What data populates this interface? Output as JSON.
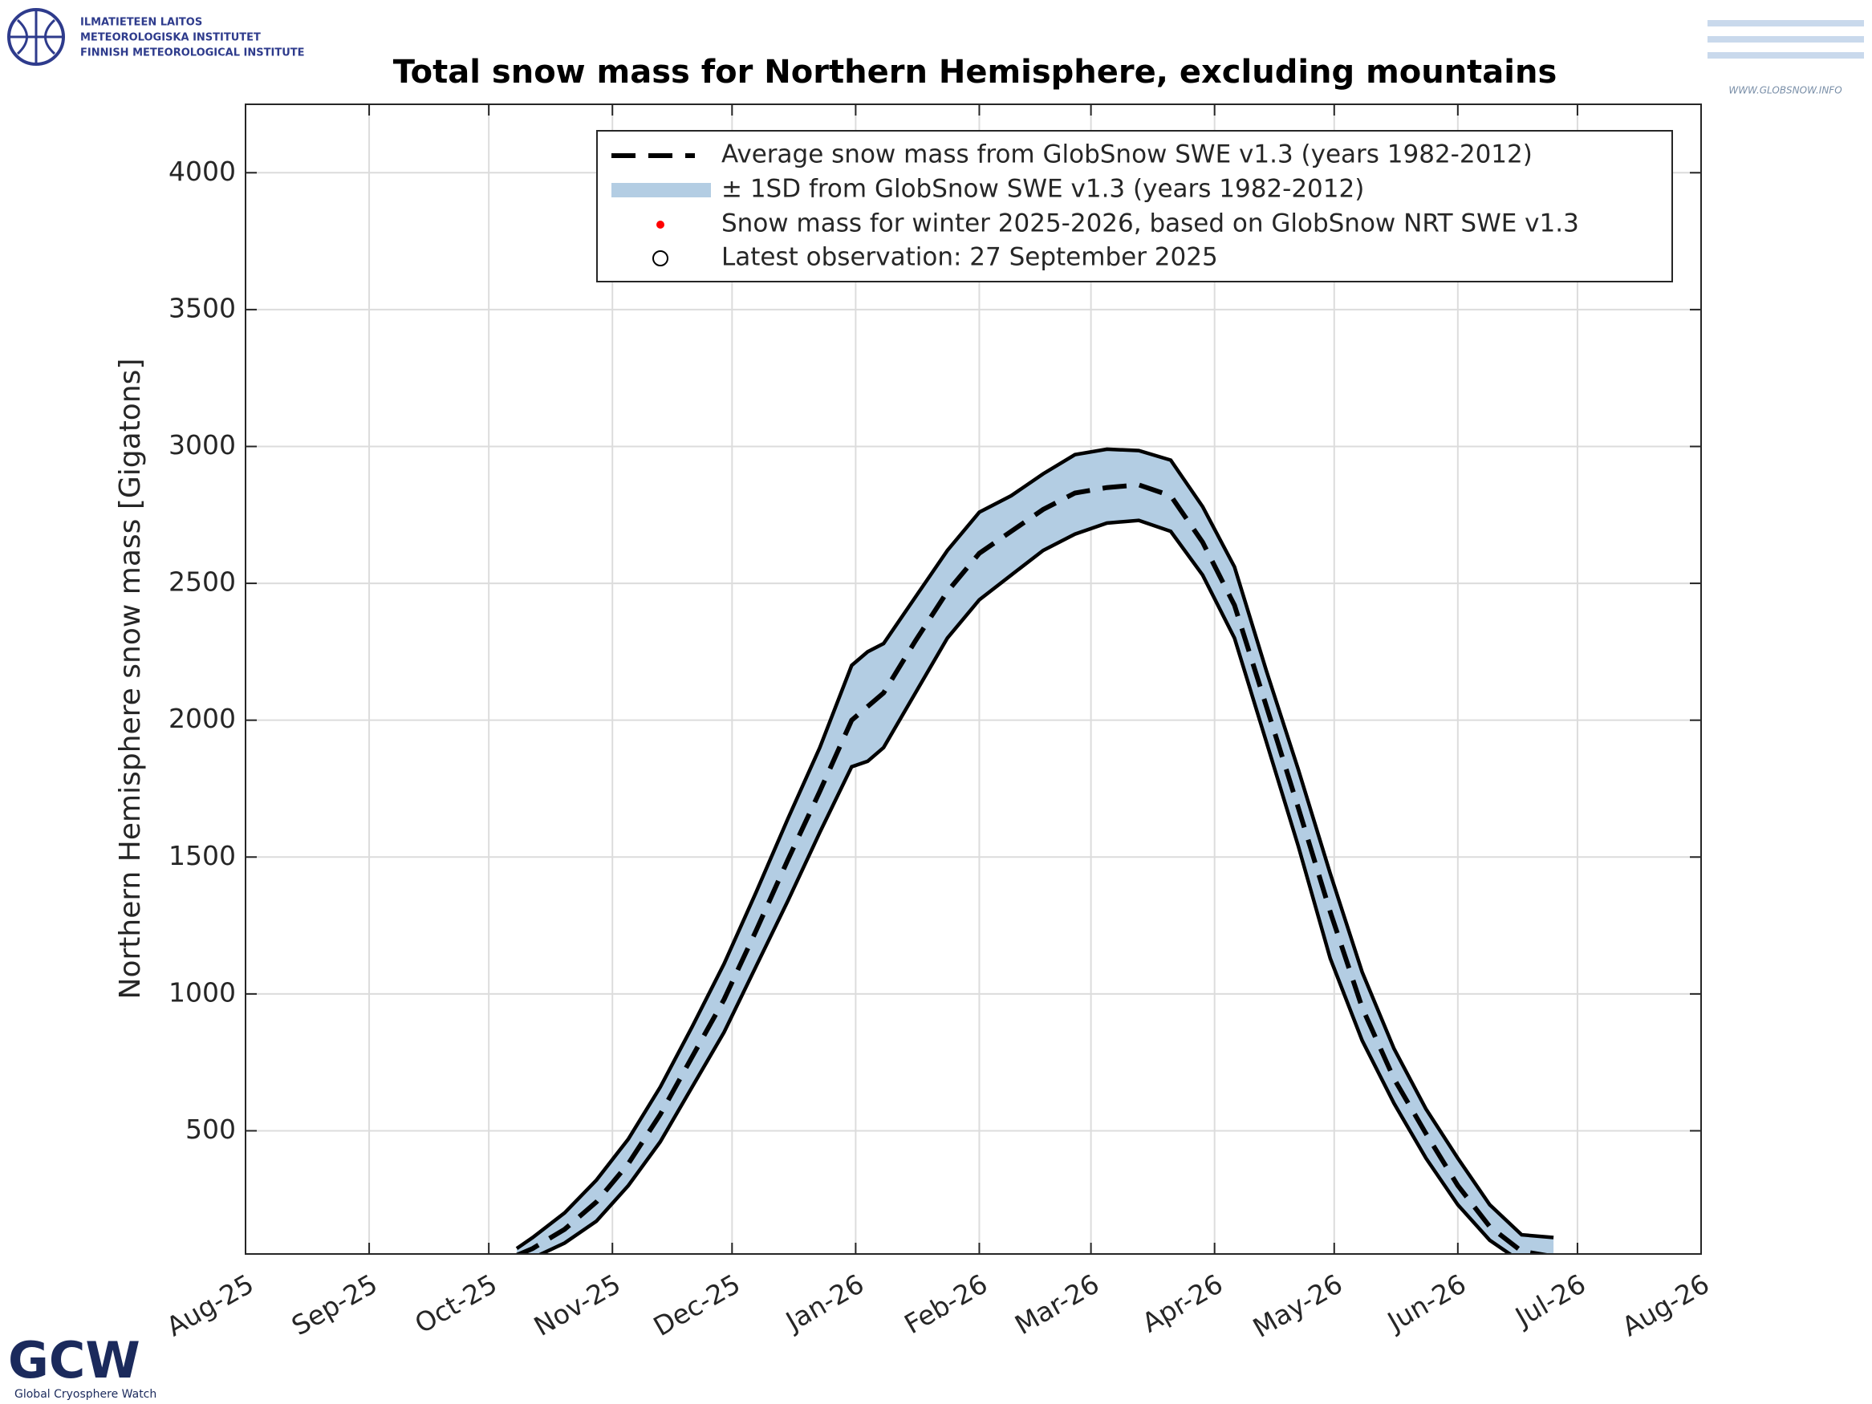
{
  "logos": {
    "fmi": [
      "ILMATIETEEN LAITOS",
      "METEOROLOGISKA INSTITUTET",
      "FINNISH METEOROLOGICAL INSTITUTE"
    ],
    "globsnow": "WWW.GLOBSNOW.INFO",
    "gcw": "GCW",
    "gcw_name": "Global Cryosphere Watch"
  },
  "chart_data": {
    "type": "line",
    "title": "Total snow mass for Northern Hemisphere, excluding mountains",
    "y_label": "Northern Hemisphere snow mass [Gigatons]",
    "x": [
      68,
      72,
      80,
      88,
      96,
      104,
      112,
      120,
      128,
      136,
      144,
      152,
      156,
      160,
      168,
      176,
      184,
      192,
      200,
      208,
      216,
      224,
      232,
      240,
      248,
      256,
      264,
      272,
      280,
      288,
      296,
      304,
      312,
      320,
      328
    ],
    "series": [
      {
        "name": "Average snow mass from GlobSnow SWE v1.3 (years 1982-2012)",
        "color": "#000000",
        "values": [
          45,
          70,
          140,
          240,
          380,
          560,
          770,
          980,
          1230,
          1490,
          1740,
          2000,
          2050,
          2100,
          2290,
          2470,
          2610,
          2690,
          2770,
          2830,
          2850,
          2860,
          2820,
          2650,
          2420,
          2050,
          1680,
          1300,
          950,
          690,
          490,
          300,
          150,
          60,
          40
        ]
      }
    ],
    "band": {
      "name": "± 1SD from GlobSnow SWE v1.3 (years 1982-2012)",
      "color": "#b3cde3",
      "upper": [
        70,
        110,
        200,
        320,
        470,
        660,
        880,
        1110,
        1370,
        1640,
        1900,
        2200,
        2250,
        2280,
        2450,
        2620,
        2760,
        2820,
        2900,
        2970,
        2990,
        2985,
        2950,
        2780,
        2560,
        2180,
        1820,
        1440,
        1080,
        800,
        580,
        400,
        230,
        120,
        110
      ],
      "lower": [
        20,
        35,
        90,
        170,
        300,
        460,
        660,
        860,
        1100,
        1340,
        1590,
        1830,
        1850,
        1900,
        2100,
        2300,
        2440,
        2530,
        2620,
        2680,
        2720,
        2730,
        2690,
        2530,
        2300,
        1920,
        1540,
        1130,
        830,
        600,
        400,
        230,
        100,
        20,
        0
      ]
    },
    "legend_extra": [
      {
        "name": "Snow mass for winter 2025-2026, based on GlobSnow NRT SWE v1.3",
        "color": "#ff0000"
      },
      {
        "name": "Latest observation: 27 September 2025",
        "color": "#000000"
      }
    ],
    "xlim": [
      0,
      365
    ],
    "xticks": [
      {
        "value": 0,
        "label": "Aug-25"
      },
      {
        "value": 31,
        "label": "Sep-25"
      },
      {
        "value": 61,
        "label": "Oct-25"
      },
      {
        "value": 92,
        "label": "Nov-25"
      },
      {
        "value": 122,
        "label": "Dec-25"
      },
      {
        "value": 153,
        "label": "Jan-26"
      },
      {
        "value": 184,
        "label": "Feb-26"
      },
      {
        "value": 212,
        "label": "Mar-26"
      },
      {
        "value": 243,
        "label": "Apr-26"
      },
      {
        "value": 273,
        "label": "May-26"
      },
      {
        "value": 304,
        "label": "Jun-26"
      },
      {
        "value": 334,
        "label": "Jul-26"
      },
      {
        "value": 365,
        "label": "Aug-26"
      }
    ],
    "ylim": [
      50,
      4250
    ],
    "yticks": [
      500,
      1000,
      1500,
      2000,
      2500,
      3000,
      3500,
      4000
    ],
    "grid": true
  }
}
